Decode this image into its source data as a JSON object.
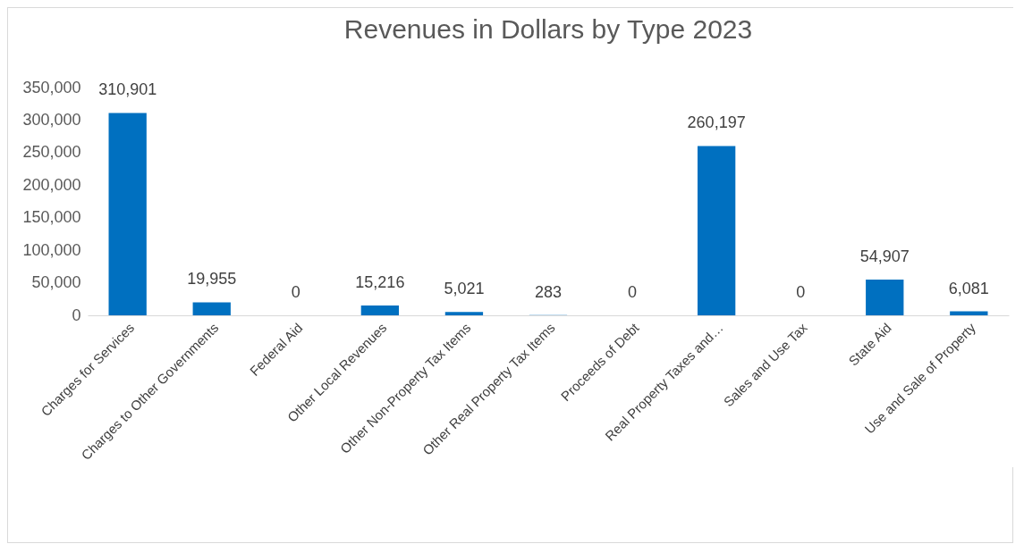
{
  "chart_data": {
    "type": "bar",
    "title": "Revenues in Dollars by Type 2023",
    "categories": [
      "Charges for Services",
      "Charges to Other Governments",
      "Federal Aid",
      "Other Local Revenues",
      "Other Non-Property Tax Items",
      "Other Real Property Tax Items",
      "Proceeds of Debt",
      "Real Property Taxes and…",
      "Sales and Use Tax",
      "State Aid",
      "Use and Sale of Property"
    ],
    "values": [
      310901,
      19955,
      0,
      15216,
      5021,
      283,
      0,
      260197,
      0,
      54907,
      6081
    ],
    "value_labels": [
      "310,901",
      "19,955",
      "0",
      "15,216",
      "5,021",
      "283",
      "0",
      "260,197",
      "0",
      "54,907",
      "6,081"
    ],
    "color": "#0070c0",
    "data_labels": true,
    "ylim": [
      0,
      350000
    ],
    "yticks": [
      0,
      {
        "value": 50000,
        "label": "50,000"
      },
      {
        "value": 100000,
        "label": "100,000"
      },
      {
        "value": 150000,
        "label": "150,000"
      },
      {
        "value": 200000,
        "label": "200,000"
      },
      {
        "value": 250000,
        "label": "250,000"
      },
      {
        "value": 300000,
        "label": "300,000"
      },
      {
        "value": 350000,
        "label": "350,000"
      }
    ]
  }
}
